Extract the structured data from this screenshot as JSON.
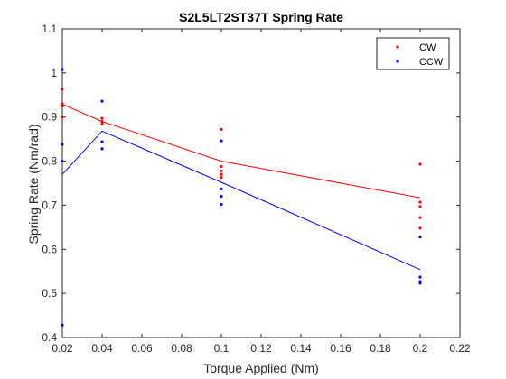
{
  "chart_data": {
    "type": "scatter",
    "title": "S2L5LT2ST37T Spring Rate",
    "xlabel": "Torque Applied (Nm)",
    "ylabel": "Spring Rate (Nm/rad)",
    "xlim": [
      0.02,
      0.22
    ],
    "ylim": [
      0.4,
      1.1
    ],
    "xticks": [
      "0.02",
      "0.04",
      "0.06",
      "0.08",
      "0.1",
      "0.12",
      "0.14",
      "0.16",
      "0.18",
      "0.2",
      "0.22"
    ],
    "yticks": [
      "0.4",
      "0.5",
      "0.6",
      "0.7",
      "0.8",
      "0.9",
      "1",
      "1.1"
    ],
    "grid": false,
    "legend_position": "top-right",
    "series": [
      {
        "name": "CW",
        "color": "#ff0000",
        "points": [
          {
            "x": 0.02,
            "y": 0.963
          },
          {
            "x": 0.02,
            "y": 0.93
          },
          {
            "x": 0.02,
            "y": 0.925
          },
          {
            "x": 0.02,
            "y": 0.9
          },
          {
            "x": 0.04,
            "y": 0.897
          },
          {
            "x": 0.04,
            "y": 0.89
          },
          {
            "x": 0.04,
            "y": 0.884
          },
          {
            "x": 0.1,
            "y": 0.872
          },
          {
            "x": 0.1,
            "y": 0.788
          },
          {
            "x": 0.1,
            "y": 0.778
          },
          {
            "x": 0.1,
            "y": 0.77
          },
          {
            "x": 0.1,
            "y": 0.763
          },
          {
            "x": 0.2,
            "y": 0.793
          },
          {
            "x": 0.2,
            "y": 0.707
          },
          {
            "x": 0.2,
            "y": 0.697
          },
          {
            "x": 0.2,
            "y": 0.672
          },
          {
            "x": 0.2,
            "y": 0.648
          }
        ],
        "line": [
          {
            "x": 0.02,
            "y": 0.929
          },
          {
            "x": 0.04,
            "y": 0.89
          },
          {
            "x": 0.1,
            "y": 0.8
          },
          {
            "x": 0.2,
            "y": 0.717
          }
        ]
      },
      {
        "name": "CCW",
        "color": "#0000ff",
        "points": [
          {
            "x": 0.02,
            "y": 1.008
          },
          {
            "x": 0.02,
            "y": 0.838
          },
          {
            "x": 0.02,
            "y": 0.8
          },
          {
            "x": 0.02,
            "y": 0.428
          },
          {
            "x": 0.04,
            "y": 0.936
          },
          {
            "x": 0.04,
            "y": 0.844
          },
          {
            "x": 0.04,
            "y": 0.828
          },
          {
            "x": 0.1,
            "y": 0.846
          },
          {
            "x": 0.1,
            "y": 0.737
          },
          {
            "x": 0.1,
            "y": 0.72
          },
          {
            "x": 0.1,
            "y": 0.702
          },
          {
            "x": 0.2,
            "y": 0.628
          },
          {
            "x": 0.2,
            "y": 0.537
          },
          {
            "x": 0.2,
            "y": 0.527
          },
          {
            "x": 0.2,
            "y": 0.523
          }
        ],
        "line": [
          {
            "x": 0.02,
            "y": 0.77
          },
          {
            "x": 0.04,
            "y": 0.868
          },
          {
            "x": 0.1,
            "y": 0.752
          },
          {
            "x": 0.2,
            "y": 0.554
          }
        ]
      }
    ]
  }
}
